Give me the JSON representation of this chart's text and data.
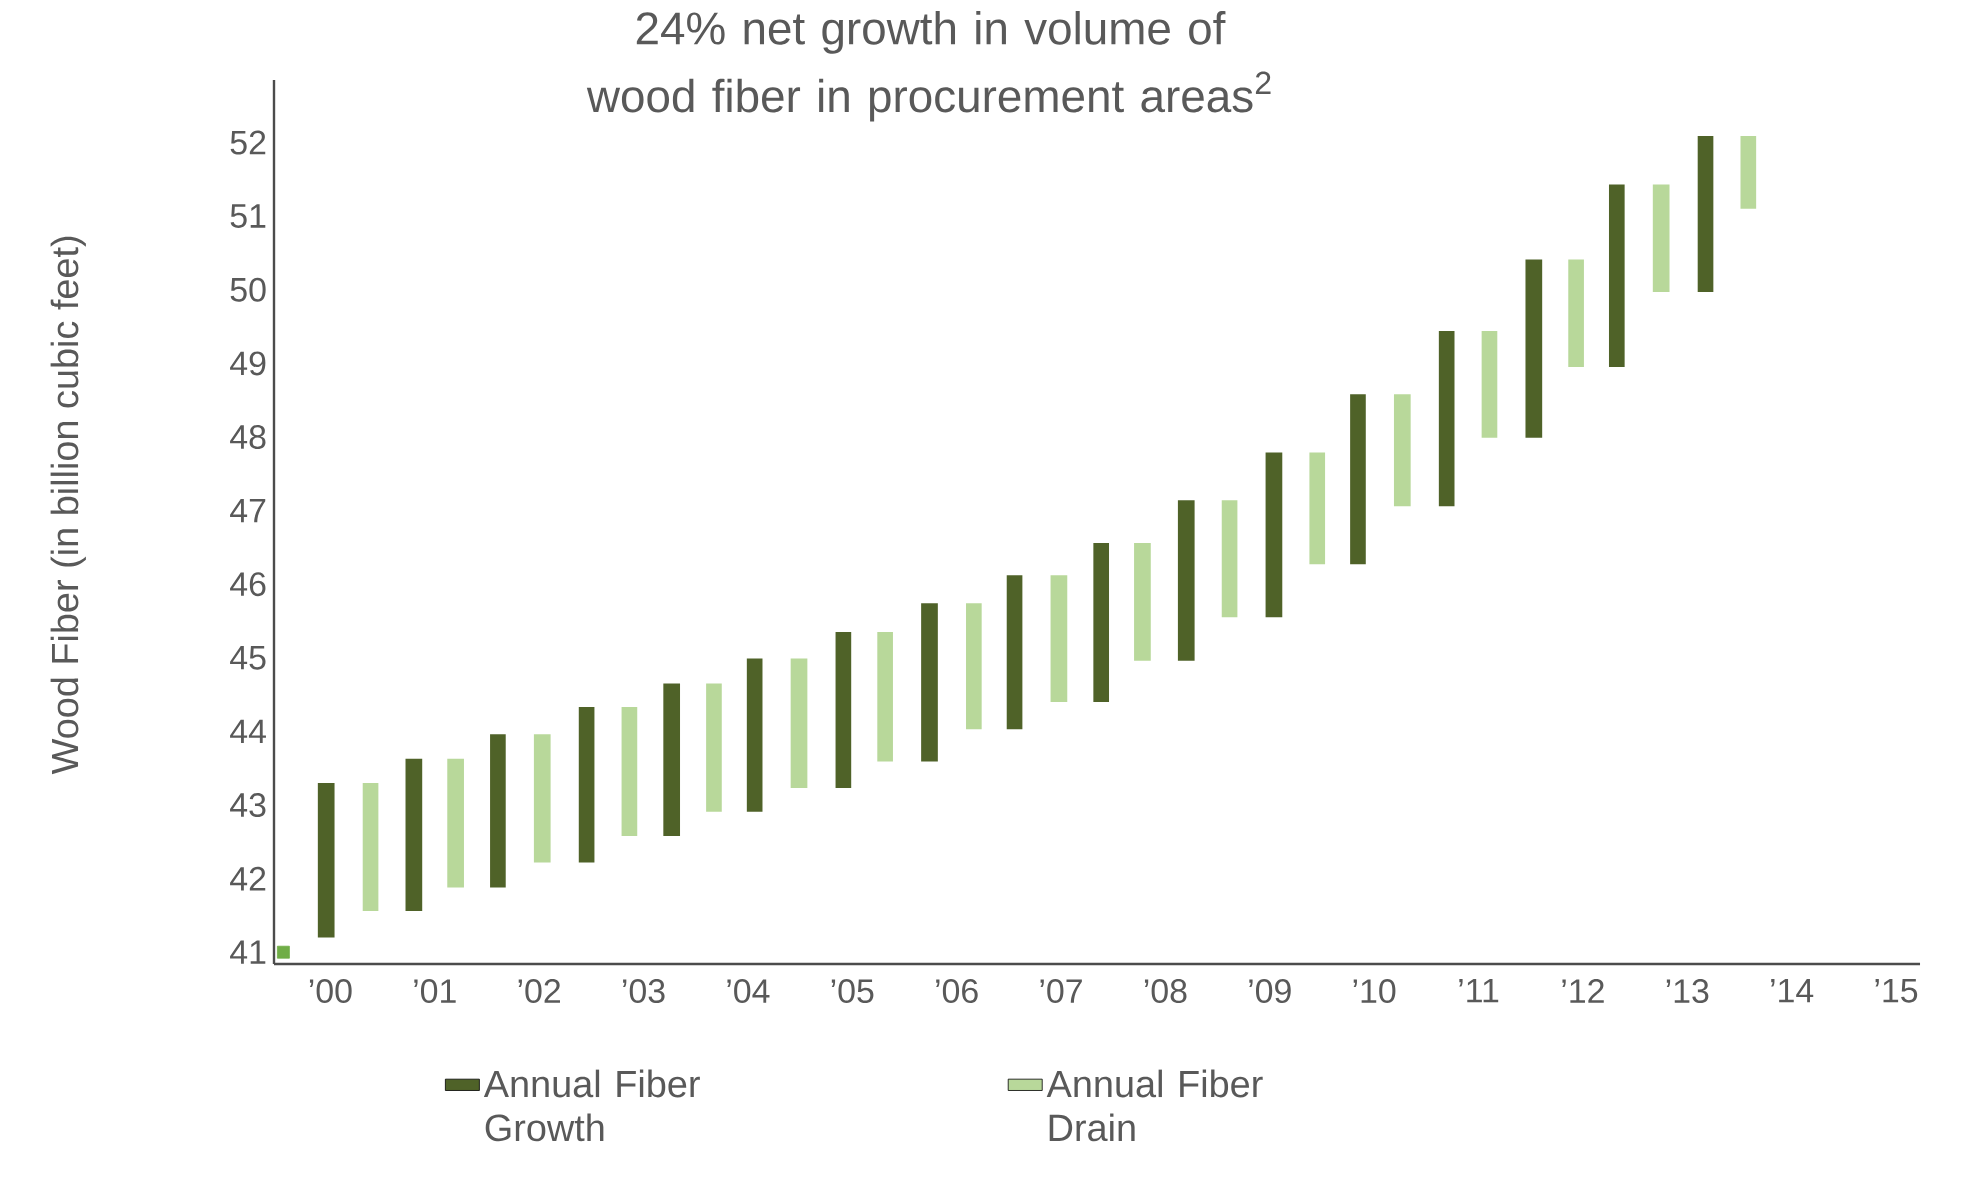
{
  "chart_data": {
    "type": "bar",
    "title": "24% net growth in volume of wood fiber in procurement areas$^{2}$",
    "ylabel": "Wood Fiber (in billion cubic feet)",
    "xlim": [
      1999.46,
      2015.23
    ],
    "ylim": [
      40.84,
      52.85
    ],
    "xticks": [
      {
        "value": 2000,
        "label": "’00"
      },
      {
        "value": 2001,
        "label": "’01"
      },
      {
        "value": 2002,
        "label": "’02"
      },
      {
        "value": 2003,
        "label": "’03"
      },
      {
        "value": 2004,
        "label": "’04"
      },
      {
        "value": 2005,
        "label": "’05"
      },
      {
        "value": 2006,
        "label": "’06"
      },
      {
        "value": 2007,
        "label": "’07"
      },
      {
        "value": 2008,
        "label": "’08"
      },
      {
        "value": 2009,
        "label": "’09"
      },
      {
        "value": 2010,
        "label": "’10"
      },
      {
        "value": 2011,
        "label": "’11"
      },
      {
        "value": 2012,
        "label": "’12"
      },
      {
        "value": 2013,
        "label": "’13"
      },
      {
        "value": 2014,
        "label": "’14"
      },
      {
        "value": 2015,
        "label": "’15"
      }
    ],
    "yticks": [
      41,
      42,
      43,
      44,
      45,
      46,
      47,
      48,
      49,
      50,
      51,
      52
    ],
    "grid": false,
    "legend": "bottom",
    "series": [
      {
        "type": "bar",
        "name": "Annual Fiber Growth",
        "color": "#4f6228",
        "x": [
          1999.96,
          2000.8,
          2001.61,
          2002.45,
          2003.27,
          2004.07,
          2004.91,
          2005.74,
          2006.56,
          2007.38,
          2008.2,
          2009.04,
          2009.85,
          2010.69,
          2011.53,
          2012.33,
          2013.17
        ],
        "base": [
          41.2,
          41.56,
          41.88,
          42.22,
          42.58,
          42.91,
          43.23,
          43.59,
          44.03,
          44.4,
          44.96,
          45.55,
          46.27,
          47.06,
          47.99,
          48.95,
          49.97
        ],
        "values": [
          2.1,
          2.07,
          2.08,
          2.11,
          2.07,
          2.08,
          2.12,
          2.15,
          2.09,
          2.16,
          2.18,
          2.24,
          2.31,
          2.38,
          2.42,
          2.48,
          2.12
        ]
      },
      {
        "type": "bar",
        "name": "Annual Fiber Drain",
        "color": "#b8d89a",
        "x": [
          2000.38,
          2001.2,
          2002.03,
          2002.87,
          2003.67,
          2004.49,
          2005.32,
          2006.16,
          2006.98,
          2007.78,
          2008.62,
          2009.45,
          2010.27,
          2011.11,
          2011.93,
          2012.75,
          2013.59
        ],
        "base": [
          41.56,
          41.88,
          42.22,
          42.58,
          42.91,
          43.23,
          43.59,
          44.03,
          44.4,
          44.96,
          45.55,
          46.27,
          47.06,
          47.99,
          48.95,
          49.97,
          51.1
        ],
        "values": [
          1.74,
          1.75,
          1.74,
          1.75,
          1.74,
          1.76,
          1.76,
          1.71,
          1.72,
          1.6,
          1.59,
          1.52,
          1.52,
          1.45,
          1.46,
          1.46,
          0.99
        ]
      },
      {
        "type": "scatter",
        "color": "#70ad47",
        "marker": "square",
        "x": [
          1999.55
        ],
        "values": [
          41
        ]
      }
    ]
  }
}
